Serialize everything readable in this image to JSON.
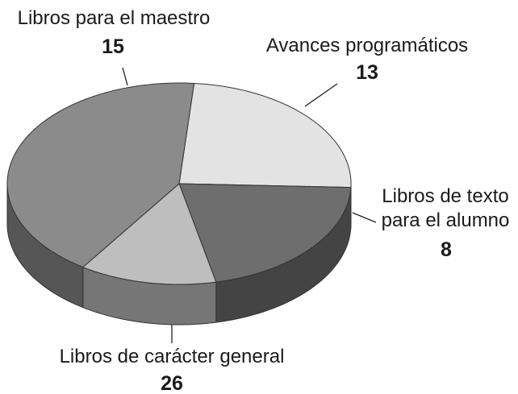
{
  "chart_data": {
    "type": "pie",
    "categories": [
      "Libros para el maestro",
      "Avances programáticos",
      "Libros de texto para el alumno",
      "Libros de carácter general"
    ],
    "values": [
      15,
      13,
      8,
      26
    ],
    "colors": [
      "#e3e3e3",
      "#6e6e6e",
      "#bebebe",
      "#8b8b8b"
    ]
  }
}
